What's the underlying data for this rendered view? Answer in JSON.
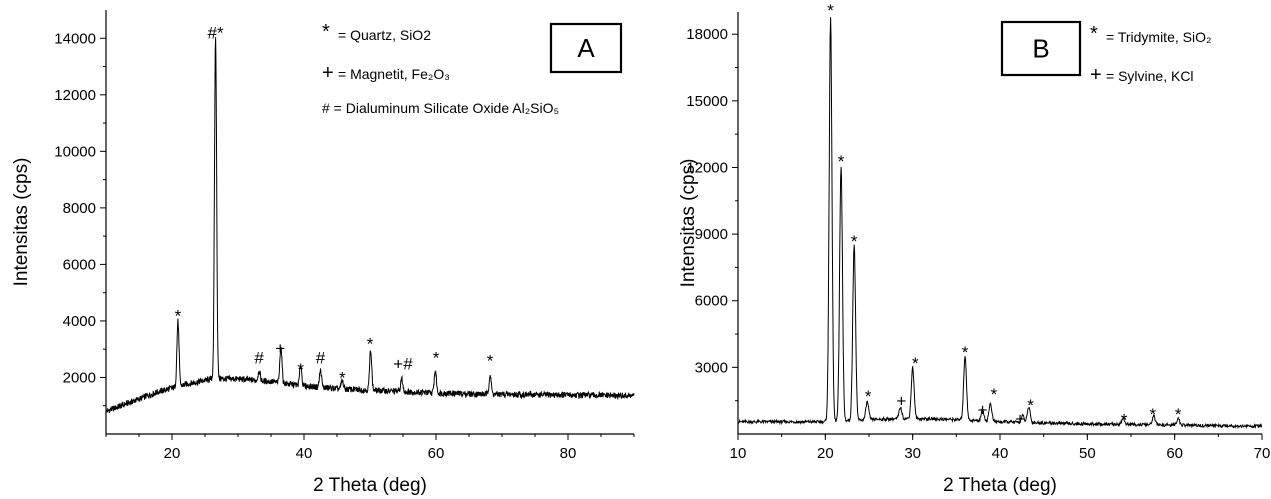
{
  "chart_data": [
    {
      "type": "line",
      "panel_label": "A",
      "xlabel": "2 Theta (deg)",
      "ylabel": "Intensitas (cps)",
      "xlim": [
        10,
        90
      ],
      "ylim": [
        0,
        15000
      ],
      "xticks": [
        20,
        40,
        60,
        80
      ],
      "yticks": [
        2000,
        4000,
        6000,
        8000,
        10000,
        12000,
        14000
      ],
      "grid": false,
      "baseline": [
        [
          10,
          800
        ],
        [
          14,
          1150
        ],
        [
          18,
          1500
        ],
        [
          22,
          1750
        ],
        [
          26,
          1950
        ],
        [
          30,
          1950
        ],
        [
          35,
          1850
        ],
        [
          40,
          1700
        ],
        [
          45,
          1600
        ],
        [
          50,
          1550
        ],
        [
          55,
          1500
        ],
        [
          60,
          1450
        ],
        [
          65,
          1420
        ],
        [
          70,
          1400
        ],
        [
          80,
          1380
        ],
        [
          90,
          1350
        ]
      ],
      "peaks": [
        [
          20.9,
          2300
        ],
        [
          26.6,
          12100
        ],
        [
          33.2,
          350
        ],
        [
          36.5,
          1300
        ],
        [
          39.5,
          700
        ],
        [
          42.5,
          600
        ],
        [
          45.8,
          300
        ],
        [
          50.1,
          1450
        ],
        [
          54.8,
          450
        ],
        [
          59.9,
          800
        ],
        [
          68.2,
          700
        ]
      ],
      "annotations": [
        {
          "x": 20.9,
          "y": 4200,
          "text": "*"
        },
        {
          "x": 26.6,
          "y": 14200,
          "text": "#*"
        },
        {
          "x": 33.2,
          "y": 2700,
          "text": "#"
        },
        {
          "x": 36.4,
          "y": 3050,
          "text": "+"
        },
        {
          "x": 39.5,
          "y": 2300,
          "text": "*"
        },
        {
          "x": 42.5,
          "y": 2700,
          "text": "#"
        },
        {
          "x": 45.8,
          "y": 2000,
          "text": "*"
        },
        {
          "x": 50.0,
          "y": 3200,
          "text": "*"
        },
        {
          "x": 55.0,
          "y": 2500,
          "text": "+#"
        },
        {
          "x": 60.0,
          "y": 2700,
          "text": "*"
        },
        {
          "x": 68.2,
          "y": 2600,
          "text": "*"
        }
      ],
      "legend": [
        {
          "symbol": "*",
          "label": "= Quartz, SiO2"
        },
        {
          "symbol": "+",
          "label": "= Magnetit, Fe₂O₃"
        },
        {
          "symbol": "",
          "label": "# = Dialuminum Silicate Oxide Al₂SiO₅"
        }
      ]
    },
    {
      "type": "line",
      "panel_label": "B",
      "xlabel": "2 Theta (deg)",
      "ylabel": "Intensitas (cps)",
      "xlim": [
        10,
        70
      ],
      "ylim": [
        0,
        19000
      ],
      "xticks": [
        10,
        20,
        30,
        40,
        50,
        60,
        70
      ],
      "yticks": [
        3000,
        6000,
        9000,
        12000,
        15000,
        18000
      ],
      "grid": false,
      "baseline": [
        [
          10,
          550
        ],
        [
          20,
          550
        ],
        [
          25,
          650
        ],
        [
          30,
          700
        ],
        [
          35,
          650
        ],
        [
          40,
          550
        ],
        [
          50,
          450
        ],
        [
          60,
          400
        ],
        [
          70,
          350
        ]
      ],
      "peaks": [
        [
          20.6,
          18200
        ],
        [
          21.8,
          11500
        ],
        [
          23.3,
          7900
        ],
        [
          24.8,
          800
        ],
        [
          28.6,
          500
        ],
        [
          30.0,
          2300
        ],
        [
          36.0,
          2900
        ],
        [
          38.0,
          500
        ],
        [
          38.9,
          800
        ],
        [
          42.6,
          300
        ],
        [
          43.3,
          700
        ],
        [
          54.1,
          300
        ],
        [
          57.6,
          400
        ],
        [
          60.4,
          300
        ]
      ],
      "annotations": [
        {
          "x": 20.6,
          "y": 19100,
          "text": "*"
        },
        {
          "x": 21.8,
          "y": 12300,
          "text": "*"
        },
        {
          "x": 23.3,
          "y": 8700,
          "text": "*"
        },
        {
          "x": 24.9,
          "y": 1700,
          "text": "*"
        },
        {
          "x": 28.7,
          "y": 1500,
          "text": "+"
        },
        {
          "x": 30.3,
          "y": 3200,
          "text": "*"
        },
        {
          "x": 36.0,
          "y": 3700,
          "text": "*"
        },
        {
          "x": 38.0,
          "y": 1100,
          "text": "+"
        },
        {
          "x": 39.3,
          "y": 1800,
          "text": "*"
        },
        {
          "x": 42.3,
          "y": 700,
          "text": "+"
        },
        {
          "x": 43.5,
          "y": 1300,
          "text": "*"
        },
        {
          "x": 54.2,
          "y": 650,
          "text": "*"
        },
        {
          "x": 57.5,
          "y": 900,
          "text": "*"
        },
        {
          "x": 60.4,
          "y": 900,
          "text": "*"
        }
      ],
      "legend": [
        {
          "symbol": "*",
          "label": "= Tridymite, SiO₂"
        },
        {
          "symbol": "+",
          "label": "= Sylvine, KCl"
        }
      ]
    }
  ]
}
